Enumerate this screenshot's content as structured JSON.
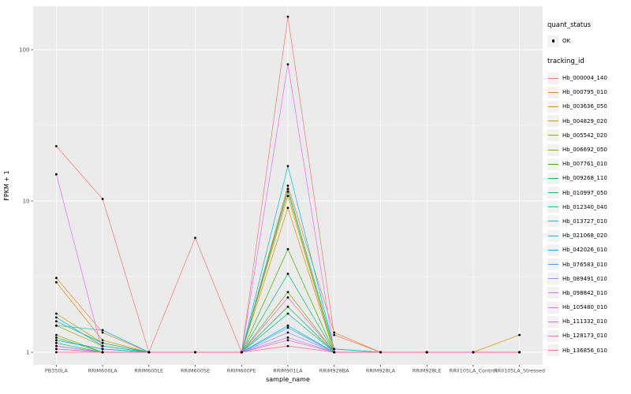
{
  "colors": {
    "panel_bg": "#EBEBEB",
    "grid": "#FFFFFF",
    "point": "#000000",
    "tick_text": "#4D4D4D",
    "tick_mark": "#333333",
    "axis_title": "#000000"
  },
  "legend": {
    "quant_status_title": "quant_status",
    "ok_label": "OK",
    "tracking_title": "tracking_id"
  },
  "chart_data": {
    "type": "line",
    "title": "",
    "xlabel": "sample_name",
    "ylabel": "FPKM + 1",
    "y_scale": "log10",
    "ylim": [
      0.83,
      240
    ],
    "grid": true,
    "legend_position": "right",
    "y_ticks": [
      {
        "value": 1,
        "label": "1"
      },
      {
        "value": 10,
        "label": "10"
      },
      {
        "value": 100,
        "label": "100"
      }
    ],
    "minor_breaks": [
      3.1623,
      31.623
    ],
    "categories": [
      "PB350LA",
      "RRIM600LA",
      "RRIM600LE",
      "RRIM600SE",
      "RRIM600PE",
      "RRIM901LA",
      "RRIM928BA",
      "RRIM928LA",
      "RRIM928LE",
      "RRII105LA_Control",
      "RRII105LA_Stressed"
    ],
    "series": [
      {
        "name": "Hb_000004_140",
        "color": "#F8766D",
        "values": [
          23,
          10.3,
          1,
          5.7,
          1,
          165,
          1.3,
          1,
          1,
          1,
          1
        ]
      },
      {
        "name": "Hb_000795_010",
        "color": "#EA8331",
        "values": [
          3.1,
          1.35,
          1,
          1,
          1,
          12.6,
          1.35,
          1,
          1,
          1,
          1
        ]
      },
      {
        "name": "Hb_003636_050",
        "color": "#D89000",
        "values": [
          2.9,
          1.2,
          1,
          1,
          1,
          9,
          1,
          1,
          1,
          1,
          1.3
        ]
      },
      {
        "name": "Hb_004829_020",
        "color": "#C09B00",
        "values": [
          1.8,
          1.15,
          1,
          1,
          1,
          10.8,
          1,
          1,
          1,
          1,
          1
        ]
      },
      {
        "name": "Hb_005542_020",
        "color": "#A3A500",
        "values": [
          1.5,
          1.1,
          1,
          1,
          1,
          11.5,
          1,
          1,
          1,
          1,
          1
        ]
      },
      {
        "name": "Hb_006692_050",
        "color": "#7CAE00",
        "values": [
          1.3,
          1,
          1,
          1,
          1,
          2.5,
          1,
          1,
          1,
          1,
          1
        ]
      },
      {
        "name": "Hb_007761_010",
        "color": "#39B600",
        "values": [
          1.25,
          1,
          1,
          1,
          1,
          4.8,
          1,
          1,
          1,
          1,
          1
        ]
      },
      {
        "name": "Hb_009268_110",
        "color": "#00BB4E",
        "values": [
          1.15,
          1,
          1,
          1,
          1,
          2.0,
          1,
          1,
          1,
          1,
          1
        ]
      },
      {
        "name": "Hb_010997_050",
        "color": "#00BF7D",
        "values": [
          1.6,
          1.15,
          1,
          1,
          1,
          3.3,
          1,
          1,
          1,
          1,
          1
        ]
      },
      {
        "name": "Hb_012340_040",
        "color": "#00C1A3",
        "values": [
          1.2,
          1.05,
          1,
          1,
          1,
          1.8,
          1,
          1,
          1,
          1,
          1
        ]
      },
      {
        "name": "Hb_013727_010",
        "color": "#00BFC4",
        "values": [
          1.7,
          1.1,
          1,
          1,
          1,
          12.0,
          1.05,
          1,
          1,
          1,
          1
        ]
      },
      {
        "name": "Hb_021068_020",
        "color": "#00BAE0",
        "values": [
          1.5,
          1.4,
          1,
          1,
          1,
          17,
          1.05,
          1,
          1,
          1,
          1
        ]
      },
      {
        "name": "Hb_042026_010",
        "color": "#00B0F6",
        "values": [
          1.2,
          1.05,
          1,
          1,
          1,
          1.5,
          1,
          1,
          1,
          1,
          1
        ]
      },
      {
        "name": "Hb_076583_010",
        "color": "#35A2FF",
        "values": [
          1.1,
          1,
          1,
          1,
          1,
          1.45,
          1,
          1,
          1,
          1,
          1
        ]
      },
      {
        "name": "Hb_089491_010",
        "color": "#9590FF",
        "values": [
          1.1,
          1,
          1,
          1,
          1,
          1.35,
          1,
          1,
          1,
          1,
          1
        ]
      },
      {
        "name": "Hb_098842_010",
        "color": "#C77CFF",
        "values": [
          1.1,
          1,
          1,
          1,
          1,
          1.25,
          1,
          1,
          1,
          1,
          1
        ]
      },
      {
        "name": "Hb_105480_010",
        "color": "#E76BF3",
        "values": [
          15,
          1,
          1,
          1,
          1,
          80,
          1,
          1,
          1,
          1,
          1
        ]
      },
      {
        "name": "Hb_111332_010",
        "color": "#FA62DB",
        "values": [
          1.05,
          1,
          1,
          1,
          1,
          2.3,
          1,
          1,
          1,
          1,
          1
        ]
      },
      {
        "name": "Hb_128173_010",
        "color": "#FF62BC",
        "values": [
          1.05,
          1,
          1,
          1,
          1,
          1.2,
          1,
          1,
          1,
          1,
          1
        ]
      },
      {
        "name": "Hb_136856_010",
        "color": "#FF6A98",
        "values": [
          1,
          1,
          1,
          1,
          1,
          1.1,
          1,
          1,
          1,
          1,
          1
        ]
      }
    ]
  }
}
